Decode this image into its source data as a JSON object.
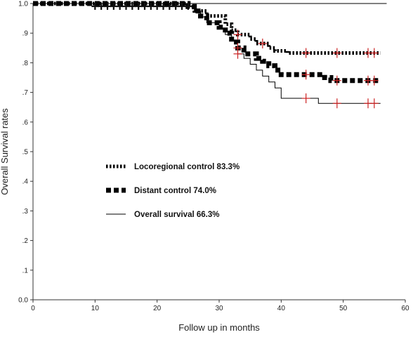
{
  "chart_data": {
    "type": "line",
    "subtype": "kaplan-meier step curves with censor marks",
    "title": "",
    "xlabel": "Follow up in months",
    "ylabel": "Overall Survival rates",
    "xlim": [
      0,
      60
    ],
    "ylim": [
      0.0,
      1.0
    ],
    "x_ticks": [
      0,
      10,
      20,
      30,
      40,
      50,
      60
    ],
    "x_tick_labels": [
      "0",
      "10",
      "20",
      "30",
      "40",
      "50",
      "60"
    ],
    "y_ticks": [
      0.0,
      0.1,
      0.2,
      0.3,
      0.4,
      0.5,
      0.6,
      0.7,
      0.8,
      0.9,
      1.0
    ],
    "y_tick_labels": [
      "0.0",
      ".1",
      ".2",
      ".3",
      ".4",
      ".5",
      ".6",
      ".7",
      ".8",
      ".9",
      "1.0"
    ],
    "grid": false,
    "legend_position": "center-left",
    "censor_color": "#cc2222",
    "series": [
      {
        "name": "Locoregional control 83.3%",
        "style": "dotted-thick",
        "color": "#000000",
        "steps": [
          [
            0,
            1.0
          ],
          [
            25,
            0.99
          ],
          [
            26,
            0.975
          ],
          [
            28,
            0.958
          ],
          [
            31,
            0.93
          ],
          [
            32,
            0.91
          ],
          [
            33,
            0.895
          ],
          [
            35,
            0.88
          ],
          [
            36,
            0.865
          ],
          [
            38,
            0.85
          ],
          [
            39,
            0.84
          ],
          [
            41,
            0.833
          ],
          [
            56,
            0.833
          ]
        ],
        "censor_x": [
          33,
          37,
          44,
          49,
          54,
          55
        ]
      },
      {
        "name": "Distant control 74.0%",
        "style": "dashed-thick",
        "color": "#000000",
        "steps": [
          [
            0,
            1.0
          ],
          [
            25,
            0.99
          ],
          [
            26,
            0.975
          ],
          [
            27,
            0.958
          ],
          [
            28,
            0.935
          ],
          [
            30,
            0.92
          ],
          [
            31,
            0.9
          ],
          [
            32,
            0.87
          ],
          [
            33,
            0.85
          ],
          [
            34,
            0.83
          ],
          [
            36,
            0.815
          ],
          [
            37,
            0.805
          ],
          [
            38,
            0.79
          ],
          [
            39,
            0.775
          ],
          [
            40,
            0.76
          ],
          [
            47,
            0.75
          ],
          [
            48,
            0.74
          ],
          [
            56,
            0.74
          ]
        ],
        "censor_x": [
          33,
          44,
          49,
          54,
          55
        ]
      },
      {
        "name": "Overall survival 66.3%",
        "style": "solid-thin",
        "color": "#000000",
        "steps": [
          [
            0,
            1.0
          ],
          [
            25,
            0.99
          ],
          [
            26,
            0.975
          ],
          [
            27,
            0.955
          ],
          [
            28,
            0.935
          ],
          [
            30,
            0.915
          ],
          [
            31,
            0.895
          ],
          [
            32,
            0.875
          ],
          [
            33,
            0.83
          ],
          [
            34,
            0.815
          ],
          [
            35,
            0.795
          ],
          [
            36,
            0.775
          ],
          [
            37,
            0.755
          ],
          [
            38,
            0.735
          ],
          [
            39,
            0.715
          ],
          [
            40,
            0.68
          ],
          [
            46,
            0.663
          ],
          [
            56,
            0.663
          ]
        ],
        "censor_x": [
          33,
          44,
          49,
          54,
          55
        ]
      },
      {
        "name": "",
        "style": "solid-thin",
        "color": "#000000",
        "steps": [
          [
            0,
            1.0
          ],
          [
            57,
            1.0
          ]
        ],
        "censor_x": []
      }
    ],
    "early_censor_x": [
      10,
      11,
      12,
      13,
      14,
      15,
      16,
      17,
      18,
      19,
      20,
      21,
      22,
      23,
      24,
      25
    ]
  }
}
